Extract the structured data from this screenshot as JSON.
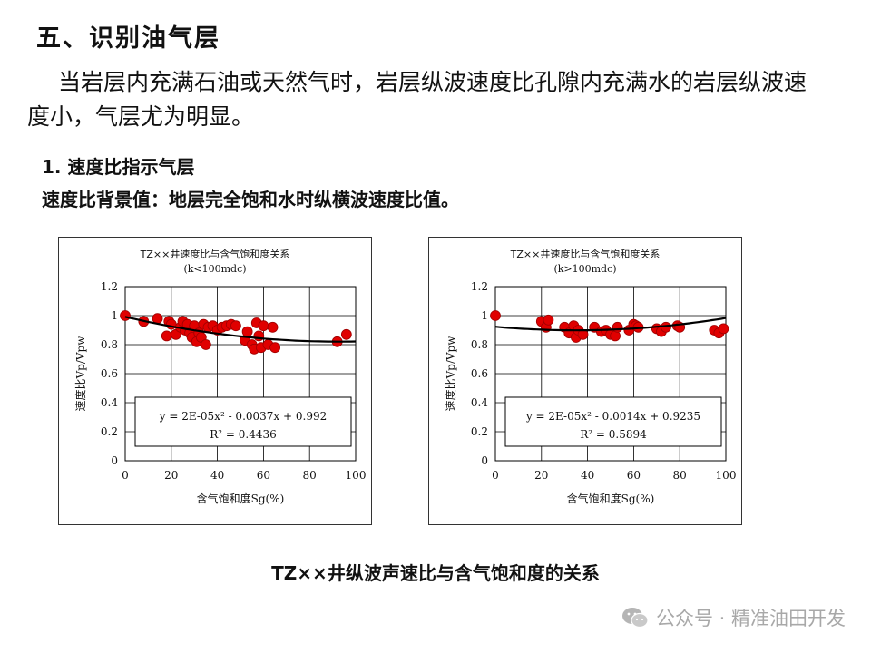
{
  "page": {
    "heading": "五、识别油气层",
    "paragraph": "当岩层内充满石油或天然气时，岩层纵波速度比孔隙内充满水的岩层纵波速度小，气层尤为明显。",
    "subheading_1": "1. 速度比指示气层",
    "subheading_2": "速度比背景值：地层完全饱和水时纵横波速度比值。",
    "caption": "TZ××井纵波声速比与含气饱和度的关系",
    "watermark": "公众号 · 精准油田开发"
  },
  "chart_data": [
    {
      "type": "scatter",
      "title": "TZ××井速度比与含气饱和度关系",
      "subtitle": "(k<100mdc)",
      "xlabel": "含气饱和度Sg(%)",
      "ylabel": "速度比Vp/Vpw",
      "xlim": [
        0,
        100
      ],
      "ylim": [
        0,
        1.2
      ],
      "xticks": [
        "0",
        "20",
        "40",
        "60",
        "80",
        "100"
      ],
      "yticks": [
        "0",
        "0.2",
        "0.4",
        "0.6",
        "0.8",
        "1",
        "1.2"
      ],
      "grid": true,
      "point_color": "#e00000",
      "trend_color": "#000000",
      "equation": "y = 2E-05x² - 0.0037x + 0.992",
      "r2": "R² = 0.4436",
      "trend": {
        "a": 2e-05,
        "b": -0.0037,
        "c": 0.992
      },
      "points": [
        [
          0,
          1.0
        ],
        [
          8,
          0.96
        ],
        [
          14,
          0.98
        ],
        [
          18,
          0.86
        ],
        [
          19,
          0.96
        ],
        [
          20,
          0.94
        ],
        [
          22,
          0.87
        ],
        [
          24,
          0.92
        ],
        [
          25,
          0.96
        ],
        [
          26,
          0.9
        ],
        [
          27,
          0.94
        ],
        [
          28,
          0.88
        ],
        [
          29,
          0.85
        ],
        [
          30,
          0.93
        ],
        [
          31,
          0.82
        ],
        [
          32,
          0.88
        ],
        [
          33,
          0.85
        ],
        [
          34,
          0.94
        ],
        [
          35,
          0.8
        ],
        [
          36,
          0.92
        ],
        [
          38,
          0.93
        ],
        [
          40,
          0.9
        ],
        [
          42,
          0.92
        ],
        [
          44,
          0.93
        ],
        [
          46,
          0.94
        ],
        [
          48,
          0.93
        ],
        [
          52,
          0.83
        ],
        [
          53,
          0.89
        ],
        [
          55,
          0.8
        ],
        [
          56,
          0.77
        ],
        [
          57,
          0.95
        ],
        [
          58,
          0.86
        ],
        [
          59,
          0.78
        ],
        [
          60,
          0.93
        ],
        [
          62,
          0.8
        ],
        [
          64,
          0.92
        ],
        [
          65,
          0.78
        ],
        [
          92,
          0.82
        ],
        [
          96,
          0.87
        ]
      ]
    },
    {
      "type": "scatter",
      "title": "TZ××井速度比与含气饱和度关系",
      "subtitle": "(k>100mdc)",
      "xlabel": "含气饱和度Sg(%)",
      "ylabel": "速度比Vp/Vpw",
      "xlim": [
        0,
        100
      ],
      "ylim": [
        0,
        1.2
      ],
      "xticks": [
        "0",
        "20",
        "40",
        "60",
        "80",
        "100"
      ],
      "yticks": [
        "0",
        "0.2",
        "0.4",
        "0.6",
        "0.8",
        "1",
        "1.2"
      ],
      "grid": true,
      "point_color": "#e00000",
      "trend_color": "#000000",
      "equation": "y = 2E-05x² - 0.0014x + 0.9235",
      "r2": "R² = 0.5894",
      "trend": {
        "a": 2e-05,
        "b": -0.0014,
        "c": 0.9235
      },
      "points": [
        [
          0,
          1.0
        ],
        [
          20,
          0.96
        ],
        [
          22,
          0.92
        ],
        [
          23,
          0.97
        ],
        [
          30,
          0.92
        ],
        [
          32,
          0.88
        ],
        [
          34,
          0.93
        ],
        [
          35,
          0.85
        ],
        [
          36,
          0.9
        ],
        [
          38,
          0.87
        ],
        [
          43,
          0.92
        ],
        [
          46,
          0.89
        ],
        [
          48,
          0.9
        ],
        [
          50,
          0.87
        ],
        [
          52,
          0.86
        ],
        [
          53,
          0.92
        ],
        [
          58,
          0.9
        ],
        [
          60,
          0.94
        ],
        [
          61,
          0.93
        ],
        [
          62,
          0.92
        ],
        [
          70,
          0.91
        ],
        [
          72,
          0.89
        ],
        [
          74,
          0.92
        ],
        [
          79,
          0.93
        ],
        [
          80,
          0.92
        ],
        [
          95,
          0.9
        ],
        [
          97,
          0.88
        ],
        [
          99,
          0.91
        ]
      ]
    }
  ]
}
